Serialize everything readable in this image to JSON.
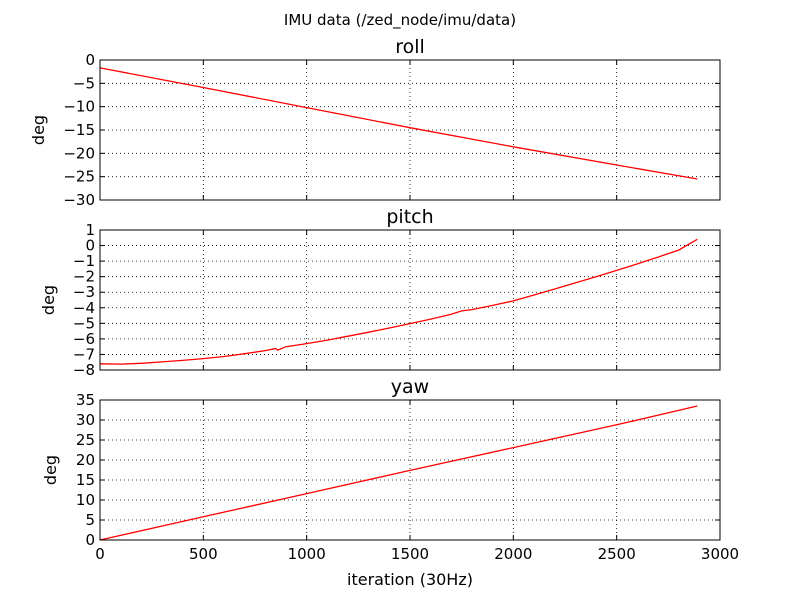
{
  "suptitle": "IMU data (/zed_node/imu/data)",
  "xlabel": "iteration (30Hz)",
  "chart_data": [
    {
      "type": "line",
      "title": "roll",
      "ylabel": "deg",
      "xlim": [
        0,
        3000
      ],
      "ylim": [
        -30,
        0
      ],
      "xticks": [
        0,
        500,
        1000,
        1500,
        2000,
        2500,
        3000
      ],
      "yticks": [
        0,
        -5,
        -10,
        -15,
        -20,
        -25,
        -30
      ],
      "grid": true,
      "series": [
        {
          "color": "#ff0000",
          "x": [
            0,
            500,
            1000,
            1500,
            2000,
            2500,
            2890
          ],
          "y": [
            -1.7,
            -5.9,
            -10.2,
            -14.5,
            -18.6,
            -22.5,
            -25.5
          ]
        }
      ]
    },
    {
      "type": "line",
      "title": "pitch",
      "ylabel": "deg",
      "xlim": [
        0,
        3000
      ],
      "ylim": [
        -8,
        1
      ],
      "xticks": [
        0,
        500,
        1000,
        1500,
        2000,
        2500,
        3000
      ],
      "yticks": [
        1,
        0,
        -1,
        -2,
        -3,
        -4,
        -5,
        -6,
        -7,
        -8
      ],
      "grid": true,
      "series": [
        {
          "color": "#ff0000",
          "x": [
            0,
            100,
            200,
            300,
            400,
            500,
            600,
            700,
            800,
            850,
            860,
            900,
            1000,
            1100,
            1200,
            1300,
            1400,
            1500,
            1600,
            1700,
            1750,
            1800,
            1900,
            2000,
            2100,
            2200,
            2300,
            2400,
            2500,
            2600,
            2700,
            2800,
            2890
          ],
          "y": [
            -7.6,
            -7.62,
            -7.57,
            -7.48,
            -7.38,
            -7.27,
            -7.13,
            -6.95,
            -6.75,
            -6.62,
            -6.72,
            -6.5,
            -6.3,
            -6.08,
            -5.83,
            -5.57,
            -5.3,
            -5.02,
            -4.73,
            -4.42,
            -4.2,
            -4.12,
            -3.85,
            -3.56,
            -3.18,
            -2.79,
            -2.4,
            -2.0,
            -1.6,
            -1.18,
            -0.74,
            -0.29,
            0.4
          ]
        }
      ]
    },
    {
      "type": "line",
      "title": "yaw",
      "ylabel": "deg",
      "xlim": [
        0,
        3000
      ],
      "ylim": [
        0,
        35
      ],
      "xticks": [
        0,
        500,
        1000,
        1500,
        2000,
        2500,
        3000
      ],
      "yticks": [
        35,
        30,
        25,
        20,
        15,
        10,
        5,
        0
      ],
      "grid": true,
      "series": [
        {
          "color": "#ff0000",
          "x": [
            0,
            500,
            1000,
            1500,
            2000,
            2500,
            2890
          ],
          "y": [
            0,
            5.8,
            11.6,
            17.4,
            23.1,
            28.8,
            33.5
          ]
        }
      ]
    }
  ]
}
